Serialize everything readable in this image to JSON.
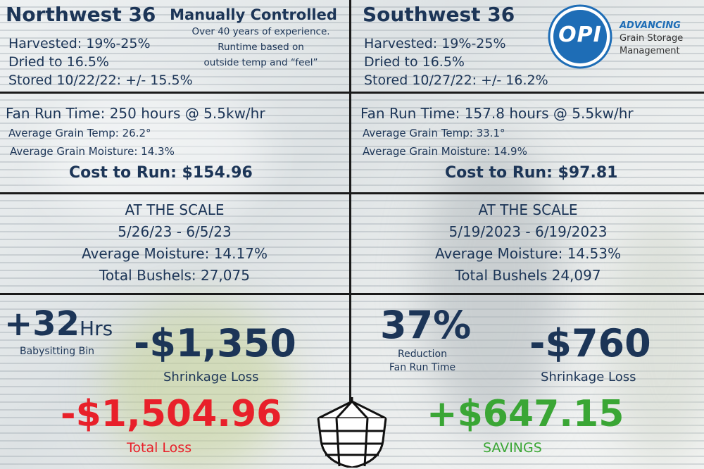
{
  "nw": {
    "title": "Northwest 36",
    "harvested": "Harvested: 19%-25%",
    "dried": "Dried to 16.5%",
    "stored": "Stored 10/22/22: +/- 15.5%",
    "fan": "Fan Run Time: 250 hours @ 5.5kw/hr",
    "temp": "Average Grain Temp: 26.2°",
    "moisture": "Average Grain Moisture: 14.3%",
    "cost": "Cost to Run: $154.96",
    "scale": {
      "heading": "AT THE SCALE",
      "dates": "5/26/23 - 6/5/23",
      "moisture": "Average Moisture: 14.17%",
      "bushels": "Total Bushels: 27,075"
    },
    "hours_value": "+32",
    "hours_unit": "Hrs",
    "hours_label": "Babysitting Bin",
    "shrink_value": "-$1,350",
    "shrink_label": "Shrinkage Loss",
    "total_value": "-$1,504.96",
    "total_label": "Total Loss"
  },
  "manual": {
    "heading": "Manually Controlled",
    "line1": "Over 40 years of experience.",
    "line2": "Runtime based on",
    "line3": "outside temp and “feel”"
  },
  "sw": {
    "title": "Southwest 36",
    "harvested": "Harvested: 19%-25%",
    "dried": "Dried to 16.5%",
    "stored": "Stored 10/27/22: +/- 16.2%",
    "fan": "Fan Run Time: 157.8 hours @ 5.5kw/hr",
    "temp": "Average Grain Temp: 33.1°",
    "moisture": "Average Grain Moisture: 14.9%",
    "cost": "Cost to Run: $97.81",
    "scale": {
      "heading": "AT THE SCALE",
      "dates": "5/19/2023 - 6/19/2023",
      "moisture": "Average Moisture: 14.53%",
      "bushels": "Total Bushels 24,097"
    },
    "reduction_value": "37%",
    "reduction_label1": "Reduction",
    "reduction_label2": "Fan Run Time",
    "shrink_value": "-$760",
    "shrink_label": "Shrinkage Loss",
    "savings_value": "+$647.15",
    "savings_label": "SAVINGS"
  },
  "logo": {
    "mark": "OPI",
    "tagline1": "ADVANCING",
    "tagline2": "Grain Storage",
    "tagline3": "Management"
  },
  "colors": {
    "text": "#1c3557",
    "loss": "#e8202a",
    "savings": "#3aa635",
    "logo_blue": "#1e6db6"
  },
  "icons": [
    "grain-bin-icon",
    "opi-logo"
  ]
}
